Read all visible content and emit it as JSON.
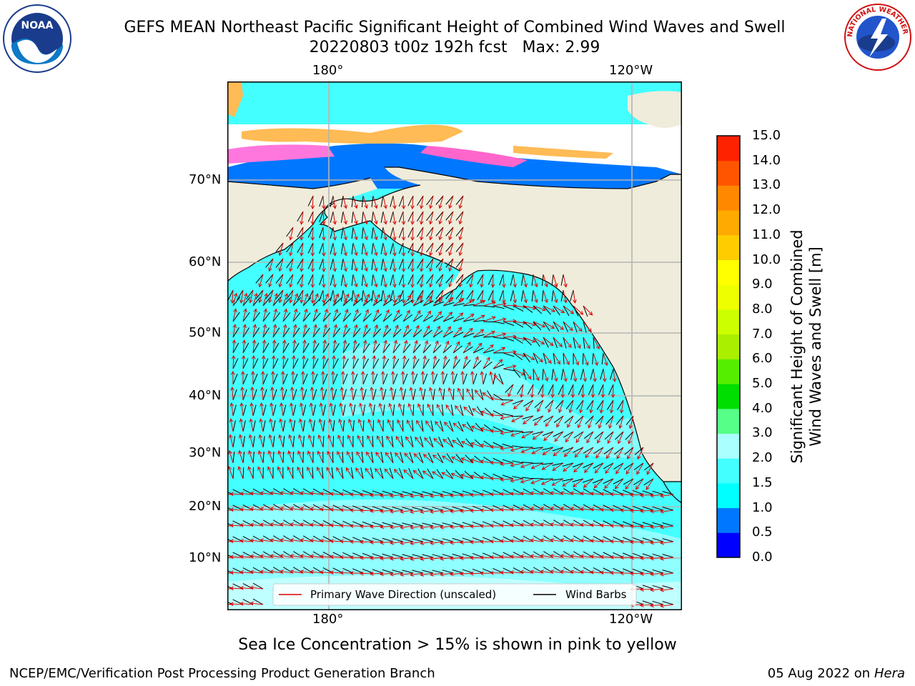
{
  "title_line1": "GEFS MEAN Northeast Pacific Significant Height of Combined Wind Waves and Swell",
  "title_line2": "20220803 t00z 192h fcst   Max: 2.99",
  "map": {
    "lon_labels_top": [
      "180°",
      "120°W"
    ],
    "lon_labels_bottom": [
      "180°",
      "120°W"
    ],
    "lat_labels": [
      "70°N",
      "60°N",
      "50°N",
      "40°N",
      "30°N",
      "20°N",
      "10°N"
    ],
    "colors": {
      "ocean_base": "#44ffff",
      "land": "#efecdb",
      "grid": "#b4b4b4",
      "arrow": "#e00000",
      "barb": "#000000"
    },
    "legend": {
      "wave_label": "Primary Wave Direction (unscaled)",
      "barb_label": "Wind Barbs"
    }
  },
  "colorbar": {
    "title_line1": "Significant Height of Combined",
    "title_line2": "Wind Waves and Swell [m]",
    "ticks": [
      "0.0",
      "0.5",
      "1.0",
      "1.5",
      "2.0",
      "3.0",
      "4.0",
      "5.0",
      "6.0",
      "7.0",
      "8.0",
      "9.0",
      "10.0",
      "11.0",
      "12.0",
      "13.0",
      "14.0",
      "15.0"
    ],
    "colors": [
      "#0000ff",
      "#0077ff",
      "#00ffff",
      "#44ffff",
      "#aaffff",
      "#55ff88",
      "#00dd00",
      "#55ee00",
      "#aaee00",
      "#ccff00",
      "#eeff00",
      "#ffff00",
      "#ffcc00",
      "#ffaa00",
      "#ff8800",
      "#ff5500",
      "#ff2200",
      "#ff0000"
    ]
  },
  "caption": "Sea Ice Concentration > 15% is shown in pink to yellow",
  "footer_left": "NCEP/EMC/Verification Post Processing Product Generation Branch",
  "footer_right_date": "05 Aug 2022 on",
  "footer_right_host": "Hera",
  "logos": {
    "left_text": "NOAA",
    "right_text": "NATIONAL WEATHER SERVICE"
  }
}
